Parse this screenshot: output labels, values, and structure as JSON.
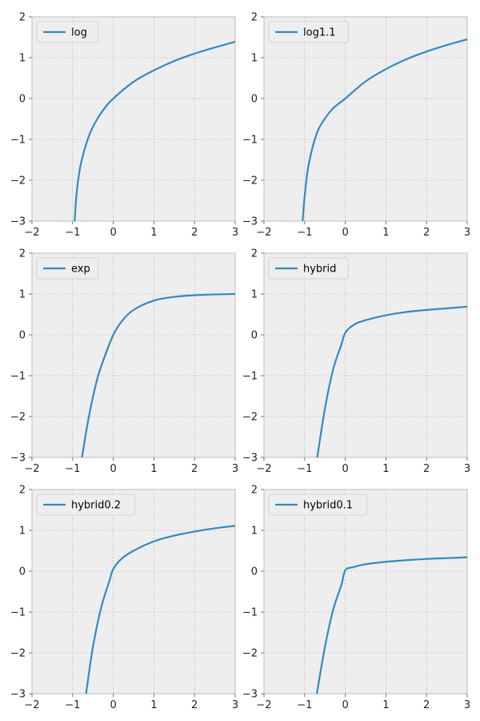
{
  "chart_data": [
    {
      "type": "line",
      "series": [
        {
          "name": "log",
          "color": "#348ABD",
          "x": [
            -0.95,
            -0.9,
            -0.8,
            -0.6,
            -0.4,
            -0.2,
            0,
            0.5,
            1,
            1.5,
            2,
            2.5,
            3
          ],
          "y": [
            -3.0,
            -2.3,
            -1.61,
            -0.92,
            -0.51,
            -0.22,
            0,
            0.41,
            0.69,
            0.92,
            1.1,
            1.25,
            1.39
          ]
        }
      ],
      "xlim": [
        -2,
        3
      ],
      "ylim": [
        -3,
        2
      ],
      "xticks": [
        "−2",
        "−1",
        "0",
        "1",
        "2",
        "3"
      ],
      "yticks": [
        "−3",
        "−2",
        "−1",
        "0",
        "1",
        "2"
      ],
      "grid": true,
      "legend_position": "top-left"
    },
    {
      "type": "line",
      "series": [
        {
          "name": "log1.1",
          "color": "#348ABD",
          "x": [
            -1.05,
            -1.0,
            -0.9,
            -0.7,
            -0.5,
            -0.3,
            0,
            0.5,
            1,
            1.5,
            2,
            2.5,
            3
          ],
          "y": [
            -3.0,
            -2.4,
            -1.61,
            -0.85,
            -0.49,
            -0.24,
            0,
            0.42,
            0.72,
            0.96,
            1.15,
            1.31,
            1.45
          ]
        }
      ],
      "xlim": [
        -2,
        3
      ],
      "ylim": [
        -3,
        2
      ],
      "xticks": [
        "−2",
        "−1",
        "0",
        "1",
        "2",
        "3"
      ],
      "yticks": [
        "−3",
        "−2",
        "−1",
        "0",
        "1",
        "2"
      ],
      "grid": true,
      "legend_position": "top-left"
    },
    {
      "type": "line",
      "series": [
        {
          "name": "exp",
          "color": "#348ABD",
          "x": [
            -0.77,
            -0.6,
            -0.4,
            -0.2,
            0,
            0.2,
            0.5,
            1,
            1.5,
            2,
            2.5,
            3
          ],
          "y": [
            -3.0,
            -2.0,
            -1.1,
            -0.5,
            0,
            0.32,
            0.61,
            0.84,
            0.93,
            0.97,
            0.99,
            1.0
          ]
        }
      ],
      "xlim": [
        -2,
        3
      ],
      "ylim": [
        -3,
        2
      ],
      "xticks": [
        "−2",
        "−1",
        "0",
        "1",
        "2",
        "3"
      ],
      "yticks": [
        "−3",
        "−2",
        "−1",
        "0",
        "1",
        "2"
      ],
      "grid": true,
      "legend_position": "top-left"
    },
    {
      "type": "line",
      "series": [
        {
          "name": "hybrid",
          "color": "#348ABD",
          "x": [
            -0.69,
            -0.5,
            -0.3,
            -0.1,
            0,
            0.2,
            0.5,
            1,
            1.5,
            2,
            2.5,
            3
          ],
          "y": [
            -3.0,
            -1.8,
            -0.85,
            -0.25,
            0.05,
            0.24,
            0.36,
            0.48,
            0.56,
            0.61,
            0.65,
            0.69
          ]
        }
      ],
      "xlim": [
        -2,
        3
      ],
      "ylim": [
        -3,
        2
      ],
      "xticks": [
        "−2",
        "−1",
        "0",
        "1",
        "2",
        "3"
      ],
      "yticks": [
        "−3",
        "−2",
        "−1",
        "0",
        "1",
        "2"
      ],
      "grid": true,
      "legend_position": "top-left"
    },
    {
      "type": "line",
      "series": [
        {
          "name": "hybrid0.2",
          "color": "#348ABD",
          "x": [
            -0.67,
            -0.5,
            -0.3,
            -0.1,
            0,
            0.2,
            0.5,
            1,
            1.5,
            2,
            2.5,
            3
          ],
          "y": [
            -3.0,
            -1.85,
            -0.9,
            -0.25,
            0.05,
            0.3,
            0.5,
            0.73,
            0.87,
            0.97,
            1.05,
            1.11
          ]
        }
      ],
      "xlim": [
        -2,
        3
      ],
      "ylim": [
        -3,
        2
      ],
      "xticks": [
        "−2",
        "−1",
        "0",
        "1",
        "2",
        "3"
      ],
      "yticks": [
        "−3",
        "−2",
        "−1",
        "0",
        "1",
        "2"
      ],
      "grid": true,
      "legend_position": "top-left"
    },
    {
      "type": "line",
      "series": [
        {
          "name": "hybrid0.1",
          "color": "#348ABD",
          "x": [
            -0.7,
            -0.5,
            -0.3,
            -0.1,
            0,
            0.2,
            0.5,
            1,
            1.5,
            2,
            2.5,
            3
          ],
          "y": [
            -3.0,
            -1.85,
            -0.95,
            -0.35,
            0.02,
            0.1,
            0.17,
            0.23,
            0.27,
            0.3,
            0.32,
            0.34
          ]
        }
      ],
      "xlim": [
        -2,
        3
      ],
      "ylim": [
        -3,
        2
      ],
      "xticks": [
        "−2",
        "−1",
        "0",
        "1",
        "2",
        "3"
      ],
      "yticks": [
        "−3",
        "−2",
        "−1",
        "0",
        "1",
        "2"
      ],
      "grid": true,
      "legend_position": "top-left"
    }
  ]
}
